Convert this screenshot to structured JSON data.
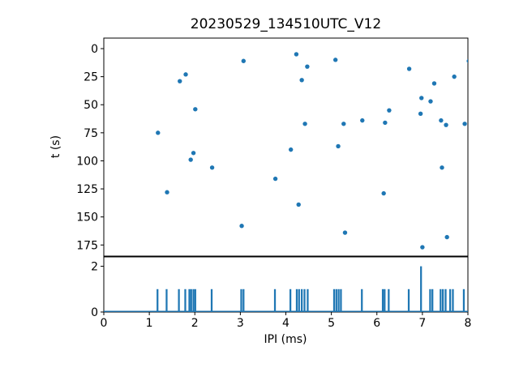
{
  "title": "20230529_134510UTC_V12",
  "accent_color": "#1f77b4",
  "chart_data": [
    {
      "type": "scatter",
      "title": "20230529_134510UTC_V12",
      "xlabel": "",
      "ylabel": "t (s)",
      "xlim": [
        0,
        8
      ],
      "ylim": [
        184.9,
        -9.4
      ],
      "y_inverted": true,
      "yticks": [
        0,
        25,
        50,
        75,
        100,
        125,
        150,
        175
      ],
      "grid": false,
      "legend": "none",
      "marker_color": "#1f77b4",
      "points": [
        [
          1.19,
          75
        ],
        [
          1.39,
          128
        ],
        [
          1.67,
          29
        ],
        [
          1.8,
          23
        ],
        [
          1.91,
          99
        ],
        [
          1.97,
          93
        ],
        [
          2.01,
          54
        ],
        [
          2.38,
          106
        ],
        [
          3.03,
          158
        ],
        [
          3.07,
          11
        ],
        [
          3.77,
          116
        ],
        [
          4.11,
          90
        ],
        [
          4.23,
          5
        ],
        [
          4.28,
          139
        ],
        [
          4.35,
          28
        ],
        [
          4.42,
          67
        ],
        [
          4.47,
          16
        ],
        [
          5.09,
          10
        ],
        [
          5.15,
          87
        ],
        [
          5.27,
          67
        ],
        [
          5.3,
          164
        ],
        [
          5.68,
          64
        ],
        [
          6.15,
          129
        ],
        [
          6.18,
          66
        ],
        [
          6.27,
          55
        ],
        [
          6.71,
          18
        ],
        [
          6.96,
          58
        ],
        [
          6.98,
          44
        ],
        [
          7.0,
          177
        ],
        [
          7.18,
          47
        ],
        [
          7.26,
          31
        ],
        [
          7.41,
          64
        ],
        [
          7.43,
          106
        ],
        [
          7.52,
          68
        ],
        [
          7.54,
          168
        ],
        [
          7.7,
          25
        ],
        [
          7.93,
          67
        ],
        [
          8.02,
          11
        ]
      ]
    },
    {
      "type": "bar",
      "title": "",
      "xlabel": "IPI (ms)",
      "ylabel": "",
      "xlim": [
        0,
        8
      ],
      "ylim": [
        0,
        2.41
      ],
      "xticks": [
        0,
        1,
        2,
        3,
        4,
        5,
        6,
        7,
        8
      ],
      "yticks": [
        0,
        2
      ],
      "grid": false,
      "legend": "none",
      "bar_color": "#1f77b4",
      "bar_width_ms": 0.04,
      "bars": [
        [
          1.18,
          1
        ],
        [
          1.38,
          1
        ],
        [
          1.65,
          1
        ],
        [
          1.79,
          1
        ],
        [
          1.88,
          1
        ],
        [
          1.92,
          1
        ],
        [
          1.97,
          1
        ],
        [
          2.01,
          1
        ],
        [
          2.37,
          1
        ],
        [
          3.02,
          1
        ],
        [
          3.07,
          1
        ],
        [
          3.76,
          1
        ],
        [
          4.1,
          1
        ],
        [
          4.24,
          1
        ],
        [
          4.29,
          1
        ],
        [
          4.35,
          1
        ],
        [
          4.41,
          1
        ],
        [
          4.48,
          1
        ],
        [
          5.06,
          1
        ],
        [
          5.11,
          1
        ],
        [
          5.16,
          1
        ],
        [
          5.21,
          1
        ],
        [
          5.67,
          1
        ],
        [
          6.13,
          1
        ],
        [
          6.17,
          1
        ],
        [
          6.26,
          1
        ],
        [
          6.7,
          1
        ],
        [
          6.97,
          2
        ],
        [
          7.17,
          1
        ],
        [
          7.22,
          1
        ],
        [
          7.4,
          1
        ],
        [
          7.45,
          1
        ],
        [
          7.51,
          1
        ],
        [
          7.61,
          1
        ],
        [
          7.67,
          1
        ],
        [
          7.91,
          1
        ]
      ]
    }
  ]
}
